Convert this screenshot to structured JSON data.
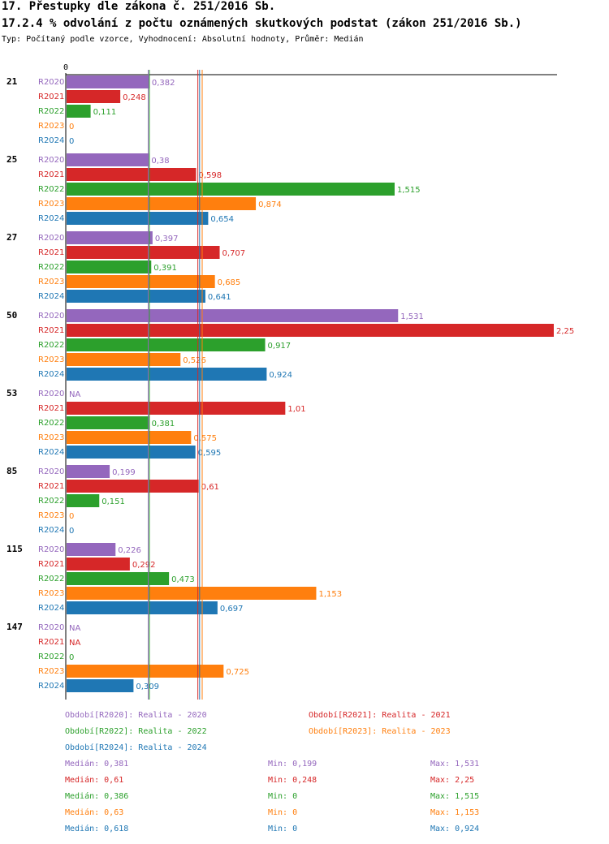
{
  "header": {
    "title": "17. Přestupky dle zákona č. 251/2016 Sb.",
    "subtitle": "17.2.4 % odvolání z počtu oznámených skutkových podstat (zákon 251/2016 Sb.)",
    "meta": "Typ: Počítaný podle vzorce, Vyhodnocení: Absolutní hodnoty, Průměr: Medián"
  },
  "chart_data": {
    "type": "bar",
    "orientation": "horizontal",
    "axis_zero_label": "0",
    "xlim": [
      0,
      2.25
    ],
    "groups": [
      {
        "label": "21",
        "bars": [
          {
            "series": "R2020",
            "value": 0.382,
            "label": "0,382"
          },
          {
            "series": "R2021",
            "value": 0.248,
            "label": "0,248"
          },
          {
            "series": "R2022",
            "value": 0.111,
            "label": "0,111"
          },
          {
            "series": "R2023",
            "value": 0,
            "label": "0"
          },
          {
            "series": "R2024",
            "value": 0,
            "label": "0"
          }
        ]
      },
      {
        "label": "25",
        "bars": [
          {
            "series": "R2020",
            "value": 0.38,
            "label": "0,38"
          },
          {
            "series": "R2021",
            "value": 0.598,
            "label": "0,598"
          },
          {
            "series": "R2022",
            "value": 1.515,
            "label": "1,515"
          },
          {
            "series": "R2023",
            "value": 0.874,
            "label": "0,874"
          },
          {
            "series": "R2024",
            "value": 0.654,
            "label": "0,654"
          }
        ]
      },
      {
        "label": "27",
        "bars": [
          {
            "series": "R2020",
            "value": 0.397,
            "label": "0,397"
          },
          {
            "series": "R2021",
            "value": 0.707,
            "label": "0,707"
          },
          {
            "series": "R2022",
            "value": 0.391,
            "label": "0,391"
          },
          {
            "series": "R2023",
            "value": 0.685,
            "label": "0,685"
          },
          {
            "series": "R2024",
            "value": 0.641,
            "label": "0,641"
          }
        ]
      },
      {
        "label": "50",
        "bars": [
          {
            "series": "R2020",
            "value": 1.531,
            "label": "1,531"
          },
          {
            "series": "R2021",
            "value": 2.25,
            "label": "2,25"
          },
          {
            "series": "R2022",
            "value": 0.917,
            "label": "0,917"
          },
          {
            "series": "R2023",
            "value": 0.526,
            "label": "0,526"
          },
          {
            "series": "R2024",
            "value": 0.924,
            "label": "0,924"
          }
        ]
      },
      {
        "label": "53",
        "bars": [
          {
            "series": "R2020",
            "value": null,
            "label": "NA"
          },
          {
            "series": "R2021",
            "value": 1.01,
            "label": "1,01"
          },
          {
            "series": "R2022",
            "value": 0.381,
            "label": "0,381"
          },
          {
            "series": "R2023",
            "value": 0.575,
            "label": "0,575"
          },
          {
            "series": "R2024",
            "value": 0.595,
            "label": "0,595"
          }
        ]
      },
      {
        "label": "85",
        "bars": [
          {
            "series": "R2020",
            "value": 0.199,
            "label": "0,199"
          },
          {
            "series": "R2021",
            "value": 0.61,
            "label": "0,61"
          },
          {
            "series": "R2022",
            "value": 0.151,
            "label": "0,151"
          },
          {
            "series": "R2023",
            "value": 0,
            "label": "0"
          },
          {
            "series": "R2024",
            "value": 0,
            "label": "0"
          }
        ]
      },
      {
        "label": "115",
        "bars": [
          {
            "series": "R2020",
            "value": 0.226,
            "label": "0,226"
          },
          {
            "series": "R2021",
            "value": 0.292,
            "label": "0,292"
          },
          {
            "series": "R2022",
            "value": 0.473,
            "label": "0,473"
          },
          {
            "series": "R2023",
            "value": 1.153,
            "label": "1,153"
          },
          {
            "series": "R2024",
            "value": 0.697,
            "label": "0,697"
          }
        ]
      },
      {
        "label": "147",
        "bars": [
          {
            "series": "R2020",
            "value": null,
            "label": "NA"
          },
          {
            "series": "R2021",
            "value": null,
            "label": "NA"
          },
          {
            "series": "R2022",
            "value": 0,
            "label": "0"
          },
          {
            "series": "R2023",
            "value": 0.725,
            "label": "0,725"
          },
          {
            "series": "R2024",
            "value": 0.309,
            "label": "0,309"
          }
        ]
      }
    ],
    "series": [
      {
        "name": "R2020",
        "color": "#9467bd",
        "legend": "Období[R2020]: Realita - 2020",
        "median": 0.381,
        "min": 0.199,
        "max": 1.531
      },
      {
        "name": "R2021",
        "color": "#d62728",
        "legend": "Období[R2021]: Realita - 2021",
        "median": 0.61,
        "min": 0.248,
        "max": 2.25
      },
      {
        "name": "R2022",
        "color": "#2ca02c",
        "legend": "Období[R2022]: Realita - 2022",
        "median": 0.386,
        "min": 0,
        "max": 1.515
      },
      {
        "name": "R2023",
        "color": "#ff7f0e",
        "legend": "Období[R2023]: Realita - 2023",
        "median": 0.63,
        "min": 0,
        "max": 1.153
      },
      {
        "name": "R2024",
        "color": "#1f77b4",
        "legend": "Období[R2024]: Realita - 2024",
        "median": 0.618,
        "min": 0,
        "max": 0.924
      }
    ],
    "legend_position": "bottom",
    "grid": false
  },
  "stats": [
    {
      "series": "R2020",
      "median": "Medián: 0,381",
      "min": "Min: 0,199",
      "max": "Max: 1,531"
    },
    {
      "series": "R2021",
      "median": "Medián: 0,61",
      "min": "Min: 0,248",
      "max": "Max: 2,25"
    },
    {
      "series": "R2022",
      "median": "Medián: 0,386",
      "min": "Min: 0",
      "max": "Max: 1,515"
    },
    {
      "series": "R2023",
      "median": "Medián: 0,63",
      "min": "Min: 0",
      "max": "Max: 1,153"
    },
    {
      "series": "R2024",
      "median": "Medián: 0,618",
      "min": "Min: 0",
      "max": "Max: 0,924"
    }
  ]
}
